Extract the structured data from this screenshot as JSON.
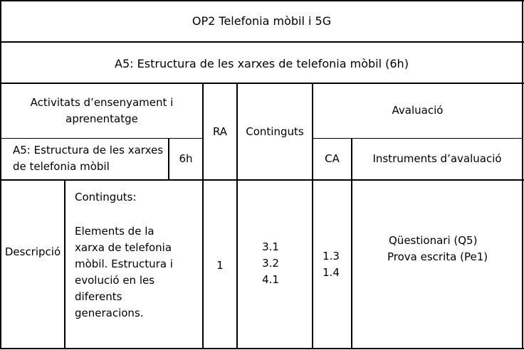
{
  "header": {
    "title": "OP2 Telefonia mòbil i 5G",
    "activity_heading": "A5: Estructura de les xarxes de telefonia mòbil (6h)"
  },
  "columns": {
    "activities_line1": "Activitats d’ensenyament i",
    "activities_line2": "aprenentatge",
    "ra": "RA",
    "continguts": "Continguts",
    "avaluacio": "Avaluació",
    "ca": "CA",
    "instruments": "Instruments d’avaluació"
  },
  "activity": {
    "name_line1": "A5: Estructura de les xarxes",
    "name_line2": "de telefonia mòbil",
    "hours": "6h"
  },
  "row": {
    "label": "Descripció",
    "desc_heading": "Continguts:",
    "desc_lines": [
      "Elements de la",
      "xarxa de telefonia",
      "mòbil. Estructura i",
      "evolució en les",
      "diferents",
      "generacions."
    ],
    "ra": "1",
    "continguts": [
      "3.1",
      "3.2",
      "4.1"
    ],
    "ca": [
      "1.3",
      "1.4"
    ],
    "instruments": [
      "Qüestionari (Q5)",
      "Prova escrita (Pe1)"
    ]
  }
}
